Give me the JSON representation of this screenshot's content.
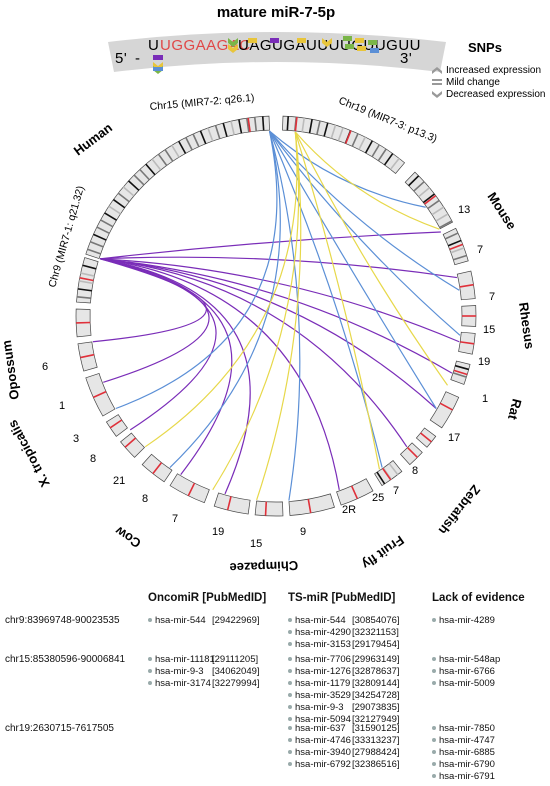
{
  "figure": {
    "title": "mature miR-7-5p",
    "sequence": {
      "five_prime": "5'",
      "dash": "-",
      "highlighted": "UGGAAGAC",
      "rest": "UAGUGAUUUUGUUGUU",
      "three_prime": "3'"
    },
    "snp_legend": {
      "title": "SNPs",
      "items": [
        {
          "label": "Increased expression",
          "icon": "chevron-up-icon"
        },
        {
          "label": "Mild change",
          "icon": "equals-icon"
        },
        {
          "label": "Decreased expression",
          "icon": "chevron-down-icon"
        }
      ]
    },
    "chromosome_labels": {
      "chr15": "Chr15 (MIR7-2: q26.1)",
      "chr19": "Chr19 (MIR7-3: p13.3)",
      "chr9": "Chr9 (MIR7-1: q21.32)"
    },
    "species": [
      "Human",
      "Mouse",
      "Rhesus",
      "Rat",
      "Zebrafish",
      "Fruit fly",
      "Chimpazee",
      "Cow",
      "X. tropicalis",
      "Opossum"
    ],
    "chromosome_numbers": {
      "mouse": [
        "13",
        "7"
      ],
      "rhesus": [
        "7",
        "15",
        "19"
      ],
      "rat": [
        "1",
        "17"
      ],
      "zebrafish": [
        "8",
        "7",
        "25"
      ],
      "fruitfly": [
        "2R"
      ],
      "chimp": [
        "9",
        "15",
        "19"
      ],
      "cow": [
        "7",
        "8"
      ],
      "xtrop": [
        "21",
        "8",
        "3"
      ],
      "opossum": [
        "1",
        "6"
      ]
    },
    "colors": {
      "chr9_links": "#7a2db8",
      "chr15_links": "#5b8fd6",
      "chr19_links": "#e7d84a",
      "locus_mark": "#e0303a",
      "highlight_seq": "#e04848"
    }
  },
  "tables": {
    "headers": {
      "oncomir": "OncomiR [PubMedID]",
      "tsmir": "TS-miR [PubMedID]",
      "lack": "Lack of evidence"
    },
    "rows": [
      {
        "locus": "chr9:83969748-90023535",
        "oncomir": [
          {
            "name": "hsa-mir-544",
            "pmid": "[29422969]"
          }
        ],
        "tsmir": [
          {
            "name": "hsa-mir-544",
            "pmid": "[30854076]"
          },
          {
            "name": "hsa-mir-4290",
            "pmid": "[32321153]"
          },
          {
            "name": "hsa-mir-3153",
            "pmid": "[29179454]"
          }
        ],
        "lack": [
          "hsa-mir-4289"
        ]
      },
      {
        "locus": "chr15:85380596-90006841",
        "oncomir": [
          {
            "name": "hsa-mir-11181",
            "pmid": "[29111205]"
          },
          {
            "name": "hsa-mir-9-3",
            "pmid": "[34062049]"
          },
          {
            "name": "hsa-mir-3174",
            "pmid": "[32279994]"
          }
        ],
        "tsmir": [
          {
            "name": "hsa-mir-7706",
            "pmid": "[29963149]"
          },
          {
            "name": "hsa-mir-1276",
            "pmid": "[32878637]"
          },
          {
            "name": "hsa-mir-1179",
            "pmid": "[32809144]"
          },
          {
            "name": "hsa-mir-3529",
            "pmid": "[34254728]"
          },
          {
            "name": "hsa-mir-9-3",
            "pmid": "[29073835]"
          },
          {
            "name": "hsa-mir-5094",
            "pmid": "[32127949]"
          }
        ],
        "lack": [
          "hsa-mir-548ap",
          "hsa-mir-6766",
          "hsa-mir-5009"
        ]
      },
      {
        "locus": "chr19:2630715-7617505",
        "oncomir": [],
        "tsmir": [
          {
            "name": "hsa-mir-637",
            "pmid": "[31590125]"
          },
          {
            "name": "hsa-mir-4746",
            "pmid": "[33313237]"
          },
          {
            "name": "hsa-mir-3940",
            "pmid": "[27988424]"
          },
          {
            "name": "hsa-mir-6792",
            "pmid": "[32386516]"
          }
        ],
        "lack": [
          "hsa-mir-7850",
          "hsa-mir-4747",
          "hsa-mir-6885",
          "hsa-mir-6790",
          "hsa-mir-6791"
        ]
      }
    ]
  }
}
